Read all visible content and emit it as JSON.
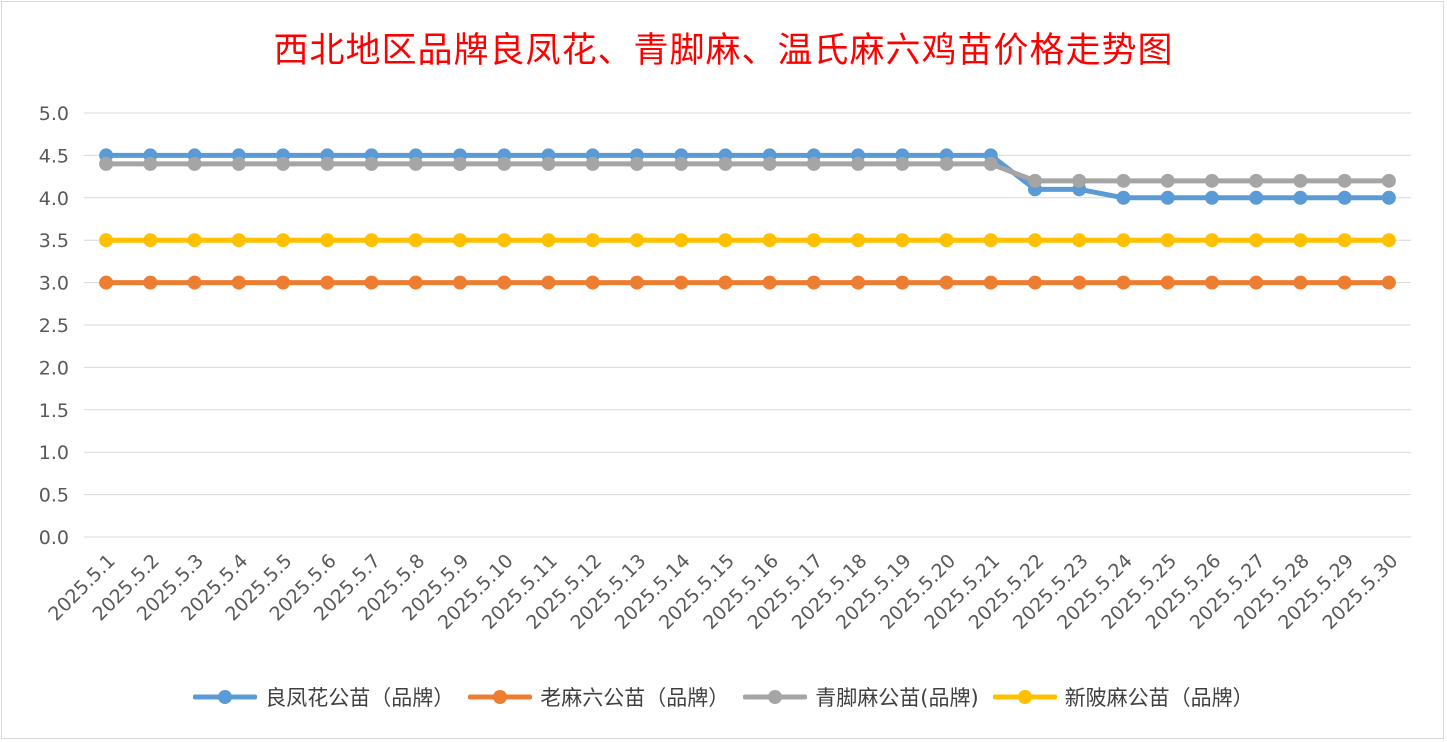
{
  "chart_data": {
    "type": "line",
    "title": "西北地区品牌良凤花、青脚麻、温氏麻六鸡苗价格走势图",
    "xlabel": "",
    "ylabel": "",
    "ylim": [
      0,
      5
    ],
    "ytick_step": 0.5,
    "ytick_labels": [
      "0.0",
      "0.5",
      "1.0",
      "1.5",
      "2.0",
      "2.5",
      "3.0",
      "3.5",
      "4.0",
      "4.5",
      "5.0"
    ],
    "grid": true,
    "legend_position": "bottom",
    "categories": [
      "2025.5.1",
      "2025.5.2",
      "2025.5.3",
      "2025.5.4",
      "2025.5.5",
      "2025.5.6",
      "2025.5.7",
      "2025.5.8",
      "2025.5.9",
      "2025.5.10",
      "2025.5.11",
      "2025.5.12",
      "2025.5.13",
      "2025.5.14",
      "2025.5.15",
      "2025.5.16",
      "2025.5.17",
      "2025.5.18",
      "2025.5.19",
      "2025.5.20",
      "2025.5.21",
      "2025.5.22",
      "2025.5.23",
      "2025.5.24",
      "2025.5.25",
      "2025.5.26",
      "2025.5.27",
      "2025.5.28",
      "2025.5.29",
      "2025.5.30"
    ],
    "series": [
      {
        "name": "良凤花公苗（品牌）",
        "color": "#5b9bd5",
        "values": [
          4.5,
          4.5,
          4.5,
          4.5,
          4.5,
          4.5,
          4.5,
          4.5,
          4.5,
          4.5,
          4.5,
          4.5,
          4.5,
          4.5,
          4.5,
          4.5,
          4.5,
          4.5,
          4.5,
          4.5,
          4.5,
          4.1,
          4.1,
          4.0,
          4.0,
          4.0,
          4.0,
          4.0,
          4.0,
          4.0
        ]
      },
      {
        "name": "老麻六公苗（品牌）",
        "color": "#ed7d31",
        "values": [
          3.0,
          3.0,
          3.0,
          3.0,
          3.0,
          3.0,
          3.0,
          3.0,
          3.0,
          3.0,
          3.0,
          3.0,
          3.0,
          3.0,
          3.0,
          3.0,
          3.0,
          3.0,
          3.0,
          3.0,
          3.0,
          3.0,
          3.0,
          3.0,
          3.0,
          3.0,
          3.0,
          3.0,
          3.0,
          3.0
        ]
      },
      {
        "name": "青脚麻公苗(品牌)",
        "color": "#a5a5a5",
        "values": [
          4.4,
          4.4,
          4.4,
          4.4,
          4.4,
          4.4,
          4.4,
          4.4,
          4.4,
          4.4,
          4.4,
          4.4,
          4.4,
          4.4,
          4.4,
          4.4,
          4.4,
          4.4,
          4.4,
          4.4,
          4.4,
          4.2,
          4.2,
          4.2,
          4.2,
          4.2,
          4.2,
          4.2,
          4.2,
          4.2
        ]
      },
      {
        "name": "新陂麻公苗（品牌）",
        "color": "#ffc000",
        "values": [
          3.5,
          3.5,
          3.5,
          3.5,
          3.5,
          3.5,
          3.5,
          3.5,
          3.5,
          3.5,
          3.5,
          3.5,
          3.5,
          3.5,
          3.5,
          3.5,
          3.5,
          3.5,
          3.5,
          3.5,
          3.5,
          3.5,
          3.5,
          3.5,
          3.5,
          3.5,
          3.5,
          3.5,
          3.5,
          3.5
        ]
      }
    ]
  },
  "colors": {
    "title": "#ff0000",
    "gridline": "#d9d9d9",
    "tick_text": "#595959"
  }
}
